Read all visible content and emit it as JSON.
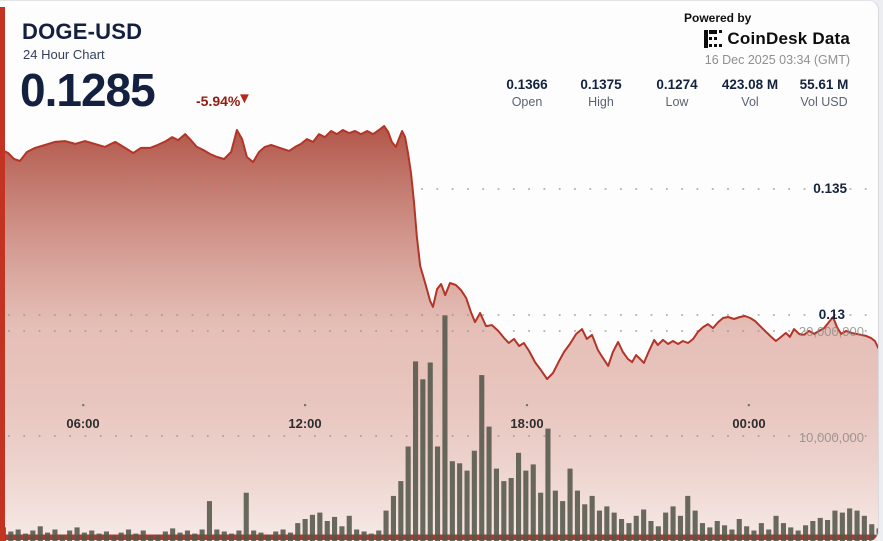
{
  "header": {
    "symbol": "DOGE-USD",
    "subtitle": "24 Hour Chart",
    "price": "0.1285",
    "change_pct": "-5.94%",
    "down_arrow_icon": "▼",
    "powered_by": "Powered by",
    "brand": "CoinDesk Data",
    "timestamp": "16 Dec 2025 03:34 (GMT)"
  },
  "stats": [
    {
      "value": "0.1366",
      "label": "Open"
    },
    {
      "value": "0.1375",
      "label": "High"
    },
    {
      "value": "0.1274",
      "label": "Low"
    },
    {
      "value": "423.08 M",
      "label": "Vol"
    },
    {
      "value": "55.61 M",
      "label": "Vol USD"
    }
  ],
  "colors": {
    "line_red": "#b23527",
    "fill_top": "#9e2b1b",
    "fill_mid": "#d28e80",
    "fill_bottom": "#f7eae7",
    "volume_bar": "#54564a",
    "accent_red": "#c23321",
    "bottom_bar_red": "#b5372a",
    "navy_text": "#14213d",
    "grid_dot": "#9a928f"
  },
  "chart_data": {
    "type": "area",
    "title": "DOGE-USD 24 Hour Chart",
    "legend": "none",
    "grid": "dotted",
    "price_axis_labels": [
      {
        "value": 0.135,
        "label": "0.135"
      },
      {
        "value": 0.13,
        "label": "0.13"
      }
    ],
    "volume_axis_labels": [
      {
        "value": 20000000,
        "label": "20,000,000"
      },
      {
        "value": 10000000,
        "label": "10,000,000"
      }
    ],
    "x_axis_labels": [
      {
        "t": 2.26,
        "label": "06:00"
      },
      {
        "t": 8.29,
        "label": "12:00"
      },
      {
        "t": 14.32,
        "label": "18:00"
      },
      {
        "t": 20.35,
        "label": "00:00"
      }
    ],
    "price_series": {
      "name": "DOGE-USD price",
      "x_unit": "hours_from_chart_start",
      "points": [
        [
          0,
          0.13659
        ],
        [
          0.22,
          0.13643
        ],
        [
          0.38,
          0.13619
        ],
        [
          0.54,
          0.13611
        ],
        [
          0.73,
          0.13647
        ],
        [
          0.95,
          0.13663
        ],
        [
          1.22,
          0.13675
        ],
        [
          1.49,
          0.13687
        ],
        [
          1.77,
          0.1369
        ],
        [
          2.04,
          0.13679
        ],
        [
          2.31,
          0.1369
        ],
        [
          2.58,
          0.13679
        ],
        [
          2.85,
          0.13667
        ],
        [
          3.13,
          0.13687
        ],
        [
          3.4,
          0.13663
        ],
        [
          3.62,
          0.13643
        ],
        [
          3.83,
          0.13663
        ],
        [
          4.08,
          0.13663
        ],
        [
          4.29,
          0.13675
        ],
        [
          4.51,
          0.1369
        ],
        [
          4.68,
          0.13706
        ],
        [
          4.84,
          0.13694
        ],
        [
          5.03,
          0.13718
        ],
        [
          5.19,
          0.13694
        ],
        [
          5.35,
          0.13667
        ],
        [
          5.52,
          0.13655
        ],
        [
          5.71,
          0.13639
        ],
        [
          5.9,
          0.13627
        ],
        [
          6.09,
          0.13619
        ],
        [
          6.28,
          0.13647
        ],
        [
          6.44,
          0.13734
        ],
        [
          6.58,
          0.13698
        ],
        [
          6.71,
          0.13627
        ],
        [
          6.88,
          0.13607
        ],
        [
          7.04,
          0.13647
        ],
        [
          7.2,
          0.13667
        ],
        [
          7.37,
          0.13675
        ],
        [
          7.53,
          0.13667
        ],
        [
          7.69,
          0.13659
        ],
        [
          7.86,
          0.13651
        ],
        [
          8.02,
          0.13667
        ],
        [
          8.18,
          0.13679
        ],
        [
          8.34,
          0.13698
        ],
        [
          8.51,
          0.13687
        ],
        [
          8.67,
          0.13718
        ],
        [
          8.83,
          0.13706
        ],
        [
          9.0,
          0.1373
        ],
        [
          9.16,
          0.13718
        ],
        [
          9.32,
          0.13734
        ],
        [
          9.49,
          0.13722
        ],
        [
          9.65,
          0.1373
        ],
        [
          9.81,
          0.13718
        ],
        [
          9.98,
          0.1373
        ],
        [
          10.14,
          0.13718
        ],
        [
          10.3,
          0.13734
        ],
        [
          10.44,
          0.1375
        ],
        [
          10.55,
          0.13726
        ],
        [
          10.65,
          0.13687
        ],
        [
          10.76,
          0.13667
        ],
        [
          10.85,
          0.13702
        ],
        [
          10.93,
          0.1373
        ],
        [
          11.01,
          0.13706
        ],
        [
          11.09,
          0.13643
        ],
        [
          11.17,
          0.13563
        ],
        [
          11.25,
          0.13452
        ],
        [
          11.33,
          0.13313
        ],
        [
          11.42,
          0.13194
        ],
        [
          11.5,
          0.13155
        ],
        [
          11.58,
          0.13115
        ],
        [
          11.69,
          0.13056
        ],
        [
          11.77,
          0.13032
        ],
        [
          11.88,
          0.13103
        ],
        [
          11.99,
          0.13123
        ],
        [
          12.1,
          0.13079
        ],
        [
          12.23,
          0.13127
        ],
        [
          12.39,
          0.13119
        ],
        [
          12.53,
          0.13099
        ],
        [
          12.67,
          0.13067
        ],
        [
          12.8,
          0.13012
        ],
        [
          12.91,
          0.12972
        ],
        [
          13.05,
          0.13008
        ],
        [
          13.21,
          0.12956
        ],
        [
          13.37,
          0.1296
        ],
        [
          13.54,
          0.12937
        ],
        [
          13.7,
          0.12909
        ],
        [
          13.83,
          0.12889
        ],
        [
          13.97,
          0.12905
        ],
        [
          14.11,
          0.12877
        ],
        [
          14.24,
          0.12889
        ],
        [
          14.38,
          0.12857
        ],
        [
          14.54,
          0.12813
        ],
        [
          14.7,
          0.12782
        ],
        [
          14.87,
          0.12746
        ],
        [
          15.03,
          0.1277
        ],
        [
          15.17,
          0.1281
        ],
        [
          15.33,
          0.12853
        ],
        [
          15.49,
          0.12885
        ],
        [
          15.66,
          0.12925
        ],
        [
          15.82,
          0.12944
        ],
        [
          15.95,
          0.12905
        ],
        [
          16.09,
          0.12921
        ],
        [
          16.25,
          0.12861
        ],
        [
          16.39,
          0.12829
        ],
        [
          16.53,
          0.12798
        ],
        [
          16.66,
          0.12853
        ],
        [
          16.8,
          0.12893
        ],
        [
          16.93,
          0.12853
        ],
        [
          17.07,
          0.12825
        ],
        [
          17.18,
          0.12813
        ],
        [
          17.29,
          0.12841
        ],
        [
          17.4,
          0.12825
        ],
        [
          17.5,
          0.1281
        ],
        [
          17.64,
          0.12857
        ],
        [
          17.78,
          0.12901
        ],
        [
          17.88,
          0.12881
        ],
        [
          18.02,
          0.12901
        ],
        [
          18.16,
          0.12885
        ],
        [
          18.29,
          0.12897
        ],
        [
          18.43,
          0.12885
        ],
        [
          18.56,
          0.12897
        ],
        [
          18.7,
          0.12889
        ],
        [
          18.84,
          0.12905
        ],
        [
          18.97,
          0.12933
        ],
        [
          19.11,
          0.12952
        ],
        [
          19.24,
          0.12964
        ],
        [
          19.38,
          0.12948
        ],
        [
          19.52,
          0.12972
        ],
        [
          19.65,
          0.12988
        ],
        [
          19.79,
          0.12992
        ],
        [
          19.95,
          0.12984
        ],
        [
          20.11,
          0.12992
        ],
        [
          20.25,
          0.12996
        ],
        [
          20.39,
          0.12988
        ],
        [
          20.52,
          0.12976
        ],
        [
          20.66,
          0.12956
        ],
        [
          20.82,
          0.12933
        ],
        [
          20.96,
          0.12913
        ],
        [
          21.09,
          0.12897
        ],
        [
          21.23,
          0.12913
        ],
        [
          21.36,
          0.12929
        ],
        [
          21.47,
          0.12913
        ],
        [
          21.58,
          0.12944
        ],
        [
          21.72,
          0.12925
        ],
        [
          21.85,
          0.12921
        ],
        [
          21.99,
          0.12937
        ],
        [
          22.13,
          0.12925
        ],
        [
          22.26,
          0.12937
        ],
        [
          22.4,
          0.12948
        ],
        [
          22.53,
          0.12972
        ],
        [
          22.64,
          0.12992
        ],
        [
          22.75,
          0.12952
        ],
        [
          22.86,
          0.12925
        ],
        [
          23.0,
          0.12937
        ],
        [
          23.13,
          0.12929
        ],
        [
          23.27,
          0.12925
        ],
        [
          23.4,
          0.12921
        ],
        [
          23.54,
          0.12917
        ],
        [
          23.67,
          0.12909
        ],
        [
          23.78,
          0.12897
        ],
        [
          23.86,
          0.12873
        ],
        [
          23.95,
          0.12849
        ],
        [
          24.0,
          0.12845
        ]
      ]
    },
    "volume_series": {
      "name": "Volume",
      "unit": "millions",
      "values": [
        1.3,
        0.9,
        1.1,
        0.7,
        1.0,
        1.4,
        0.8,
        1.1,
        0.6,
        1.0,
        1.3,
        0.8,
        1.0,
        0.7,
        0.9,
        0.5,
        0.8,
        1.1,
        0.7,
        1.0,
        0.5,
        0.6,
        0.9,
        1.2,
        0.8,
        1.0,
        0.7,
        1.1,
        3.8,
        1.1,
        0.9,
        0.7,
        1.0,
        4.6,
        1.0,
        0.8,
        0.6,
        0.9,
        1.1,
        0.8,
        1.7,
        2.1,
        2.5,
        2.7,
        1.9,
        2.3,
        1.4,
        2.4,
        1.1,
        0.9,
        0.7,
        1.0,
        2.9,
        4.3,
        5.7,
        9.0,
        17.1,
        15.4,
        17.0,
        9.0,
        21.5,
        7.6,
        7.4,
        6.7,
        8.6,
        15.8,
        10.9,
        6.9,
        5.7,
        6.0,
        8.4,
        6.7,
        7.3,
        4.6,
        10.7,
        4.8,
        3.8,
        6.9,
        4.8,
        3.5,
        4.3,
        2.9,
        3.3,
        2.7,
        2.1,
        1.7,
        2.4,
        3.0,
        1.9,
        1.4,
        2.7,
        3.3,
        2.4,
        4.3,
        2.9,
        1.7,
        1.3,
        1.9,
        1.5,
        1.1,
        2.1,
        1.4,
        1.0,
        1.7,
        1.1,
        2.4,
        1.7,
        1.3,
        1.0,
        1.5,
        1.9,
        2.2,
        2.0,
        2.9,
        2.7,
        3.1,
        2.9,
        2.4,
        1.6,
        1.2
      ]
    }
  }
}
